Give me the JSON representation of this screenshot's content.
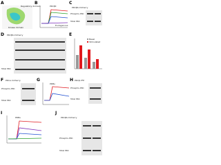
{
  "panels": [
    {
      "letter": "A",
      "labels": [
        "Regulatory domain",
        "Kinase domain"
      ]
    },
    {
      "letter": "B",
      "labels": [
        "PKCβII",
        "Endogenous"
      ]
    },
    {
      "letter": "C",
      "labels": [
        "PKCβII-mCherry",
        "Phospho-PKC",
        "Total PKC"
      ]
    },
    {
      "letter": "D",
      "labels": [
        "PKCβII-mCherry",
        "Total PKC"
      ]
    },
    {
      "letter": "E",
      "labels": [
        "Basal",
        "Stimulated"
      ]
    },
    {
      "letter": "F",
      "labels": [
        "PKCα-mCherry",
        "Phospho-PKC",
        "Total PKC"
      ]
    },
    {
      "letter": "G",
      "labels": [
        "PDBu"
      ]
    },
    {
      "letter": "H",
      "labels": [
        "PKCβ-YFP",
        "Phospho-PKC",
        "Total PKC"
      ]
    },
    {
      "letter": "I",
      "labels": [
        "PDBu"
      ]
    },
    {
      "letter": "J",
      "labels": [
        "PKCβII-mCherry",
        "Phospho-PKC",
        "Total PKC"
      ]
    }
  ]
}
